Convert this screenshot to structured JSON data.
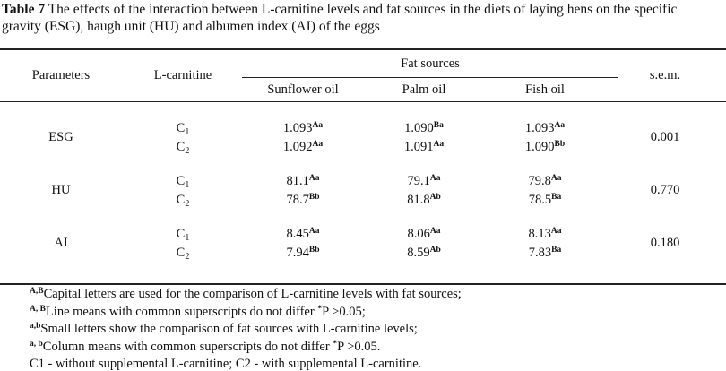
{
  "caption": {
    "label": "Table 7",
    "text": "The effects of the interaction between L-carnitine levels and fat sources in the diets of laying hens on the specific gravity (ESG), haugh unit (HU) and albumen index (AI) of the eggs"
  },
  "header": {
    "parameters": "Parameters",
    "carnitine": "L-carnitine",
    "fat_sources": "Fat sources",
    "columns": [
      "Sunflower oil",
      "Palm oil",
      "Fish oil"
    ],
    "sem": "s.e.m."
  },
  "rows": [
    {
      "parameter": "ESG",
      "sem": "0.001",
      "levels": [
        {
          "label": "C",
          "sub": "1",
          "values": [
            {
              "value": "1.093",
              "sup": "Aa"
            },
            {
              "value": "1.090",
              "sup": "Ba"
            },
            {
              "value": "1.093",
              "sup": "Aa"
            }
          ]
        },
        {
          "label": "C",
          "sub": "2",
          "values": [
            {
              "value": "1.092",
              "sup": "Aa"
            },
            {
              "value": "1.091",
              "sup": "Aa"
            },
            {
              "value": "1.090",
              "sup": "Bb"
            }
          ]
        }
      ]
    },
    {
      "parameter": "HU",
      "sem": "0.770",
      "levels": [
        {
          "label": "C",
          "sub": "1",
          "values": [
            {
              "value": "81.1",
              "sup": "Aa"
            },
            {
              "value": "79.1",
              "sup": "Aa"
            },
            {
              "value": "79.8",
              "sup": "Aa"
            }
          ]
        },
        {
          "label": "C",
          "sub": "2",
          "values": [
            {
              "value": "78.7",
              "sup": "Bb"
            },
            {
              "value": "81.8",
              "sup": "Ab"
            },
            {
              "value": "78.5",
              "sup": "Ba"
            }
          ]
        }
      ]
    },
    {
      "parameter": "AI",
      "sem": "0.180",
      "levels": [
        {
          "label": "C",
          "sub": "1",
          "values": [
            {
              "value": "8.45",
              "sup": "Aa"
            },
            {
              "value": "8.06",
              "sup": "Aa"
            },
            {
              "value": "8.13",
              "sup": "Aa"
            }
          ]
        },
        {
          "label": "C",
          "sub": "2",
          "values": [
            {
              "value": "7.94",
              "sup": "Bb"
            },
            {
              "value": "8.59",
              "sup": "Ab"
            },
            {
              "value": "7.83",
              "sup": "Ba"
            }
          ]
        }
      ]
    }
  ],
  "footnotes": [
    [
      {
        "sup": "A,B"
      },
      {
        "text": "Capital letters are used for the comparison of L-carnitine levels with fat sources;"
      }
    ],
    [
      {
        "sup": "A, B"
      },
      {
        "text": "Line means with common superscripts do not differ "
      },
      {
        "sup": "*"
      },
      {
        "text": "P >0.05;"
      }
    ],
    [
      {
        "sup": "a,b"
      },
      {
        "text": "Small letters show the comparison of fat sources with L-carnitine levels;"
      }
    ],
    [
      {
        "sup": "a, b"
      },
      {
        "text": "Column means with common superscripts do not differ "
      },
      {
        "sup": "*"
      },
      {
        "text": "P >0.05."
      }
    ],
    [
      {
        "text": "C1 - without supplemental L-carnitine; C2 - with supplemental L-carnitine."
      }
    ]
  ]
}
